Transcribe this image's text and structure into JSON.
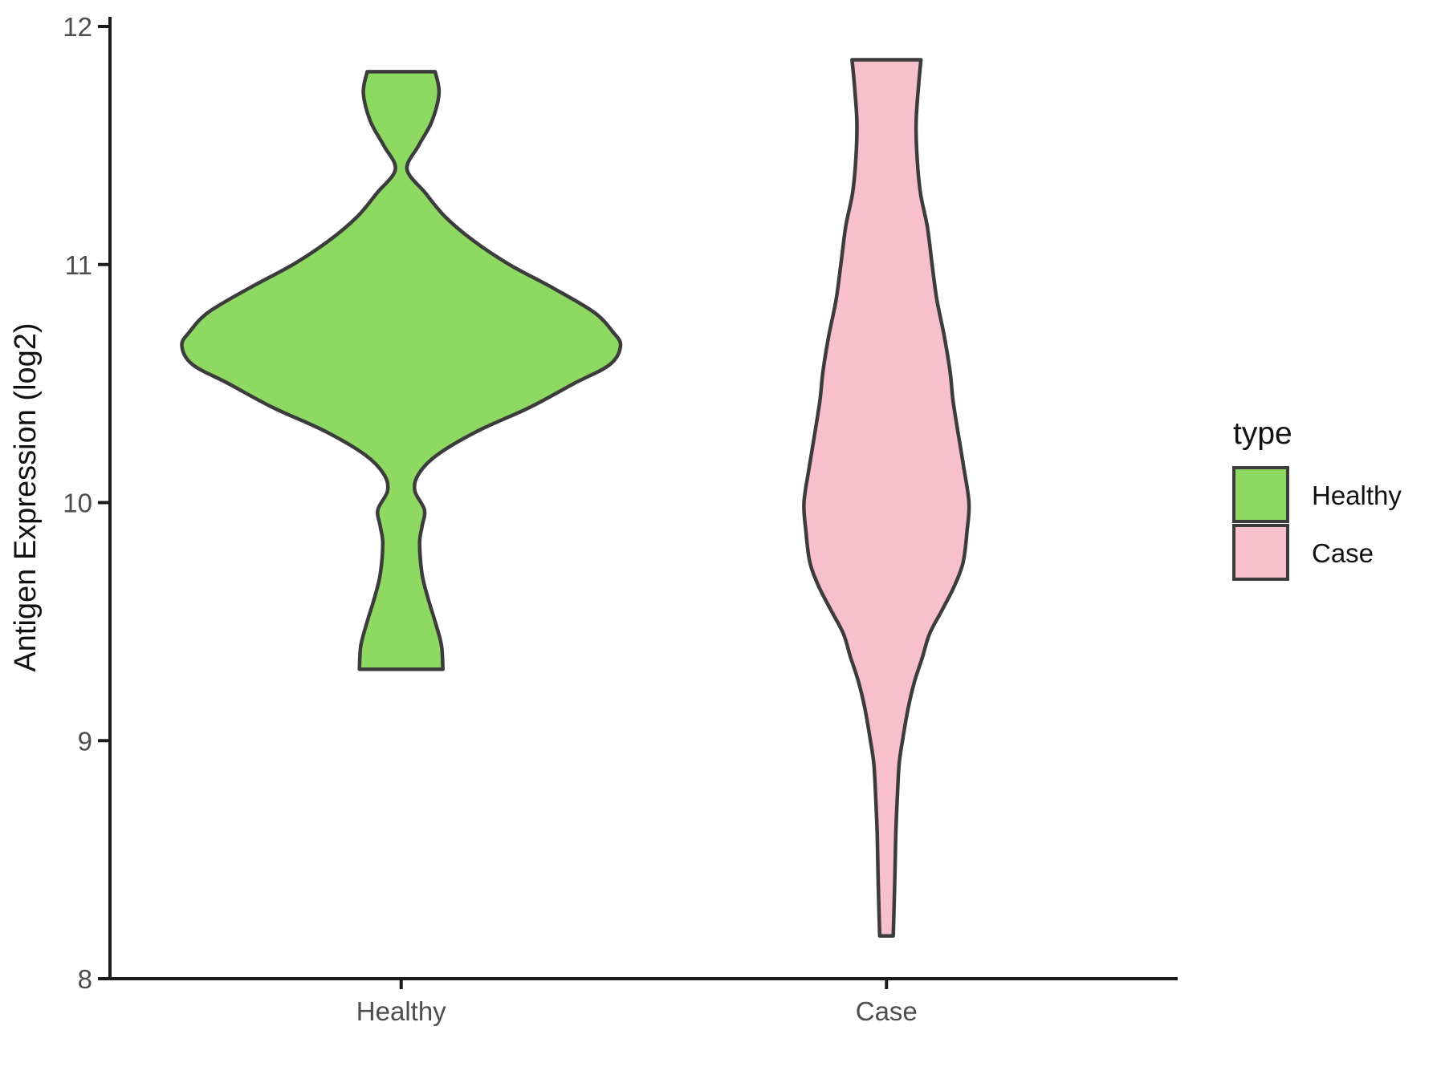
{
  "chart_data": {
    "type": "violin",
    "title": "",
    "xlabel": "",
    "ylabel": "Antigen Expression (log2)",
    "categories": [
      "Healthy",
      "Case"
    ],
    "ylim": [
      8,
      12
    ],
    "yticks": [
      8,
      9,
      10,
      11,
      12
    ],
    "grid": "off",
    "panel_background": "#ffffff",
    "axis_color": "#1a1a1a",
    "tick_label_color": "#4d4d4d",
    "legend": {
      "title": "type",
      "position": "right",
      "entries": [
        {
          "label": "Healthy",
          "color": "#8dd962"
        },
        {
          "label": "Case",
          "color": "#f8c0cc"
        }
      ]
    },
    "series": [
      {
        "name": "Healthy",
        "fill": "#8dd962",
        "outline": "#3c3c3c",
        "observed_range": [
          9.3,
          11.81
        ],
        "peak_density_value": 10.66,
        "max_halfwidth_units": 0.452,
        "profile": [
          [
            11.81,
            0.07
          ],
          [
            11.72,
            0.078
          ],
          [
            11.6,
            0.063
          ],
          [
            11.5,
            0.036
          ],
          [
            11.4,
            0.012
          ],
          [
            11.3,
            0.05
          ],
          [
            11.2,
            0.091
          ],
          [
            11.1,
            0.149
          ],
          [
            11.0,
            0.223
          ],
          [
            10.9,
            0.314
          ],
          [
            10.8,
            0.397
          ],
          [
            10.72,
            0.435
          ],
          [
            10.66,
            0.452
          ],
          [
            10.58,
            0.43
          ],
          [
            10.5,
            0.356
          ],
          [
            10.4,
            0.265
          ],
          [
            10.3,
            0.157
          ],
          [
            10.2,
            0.074
          ],
          [
            10.12,
            0.036
          ],
          [
            10.05,
            0.028
          ],
          [
            9.97,
            0.048
          ],
          [
            9.9,
            0.043
          ],
          [
            9.83,
            0.038
          ],
          [
            9.7,
            0.043
          ],
          [
            9.6,
            0.055
          ],
          [
            9.5,
            0.07
          ],
          [
            9.4,
            0.083
          ],
          [
            9.3,
            0.086
          ]
        ]
      },
      {
        "name": "Case",
        "fill": "#f8c0cc",
        "outline": "#3c3c3c",
        "observed_range": [
          8.18,
          11.86
        ],
        "peak_density_value": 10.0,
        "max_halfwidth_units": 0.17,
        "profile": [
          [
            11.86,
            0.071
          ],
          [
            11.75,
            0.066
          ],
          [
            11.6,
            0.061
          ],
          [
            11.45,
            0.063
          ],
          [
            11.3,
            0.07
          ],
          [
            11.16,
            0.084
          ],
          [
            11.0,
            0.094
          ],
          [
            10.85,
            0.104
          ],
          [
            10.7,
            0.119
          ],
          [
            10.55,
            0.131
          ],
          [
            10.43,
            0.137
          ],
          [
            10.3,
            0.147
          ],
          [
            10.15,
            0.159
          ],
          [
            10.0,
            0.17
          ],
          [
            9.88,
            0.166
          ],
          [
            9.75,
            0.158
          ],
          [
            9.65,
            0.14
          ],
          [
            9.55,
            0.115
          ],
          [
            9.45,
            0.089
          ],
          [
            9.35,
            0.074
          ],
          [
            9.25,
            0.058
          ],
          [
            9.14,
            0.045
          ],
          [
            9.0,
            0.033
          ],
          [
            8.9,
            0.026
          ],
          [
            8.75,
            0.022
          ],
          [
            8.6,
            0.019
          ],
          [
            8.4,
            0.017
          ],
          [
            8.18,
            0.014
          ]
        ]
      }
    ]
  }
}
